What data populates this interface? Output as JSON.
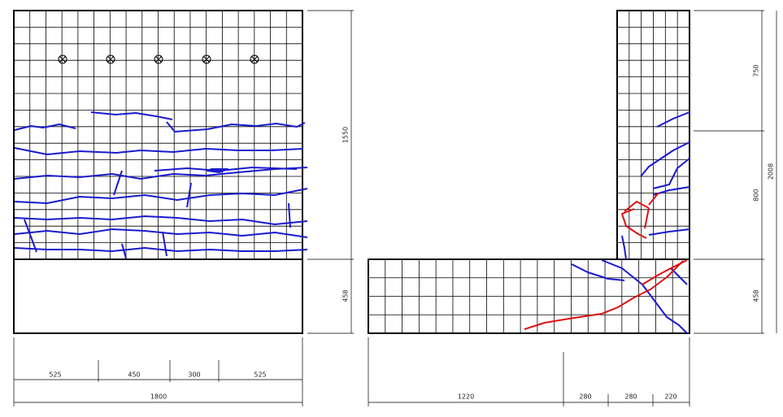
{
  "left_specimen": {
    "width_dims": [
      525,
      450,
      300,
      525
    ],
    "total_width": 1800,
    "wall_height": 1550,
    "base_height": 458
  },
  "right_specimen": {
    "length_dims": [
      1220,
      280,
      280,
      220
    ],
    "wall_dims": [
      750,
      800
    ],
    "total_height": 2008,
    "base_height": 458
  }
}
